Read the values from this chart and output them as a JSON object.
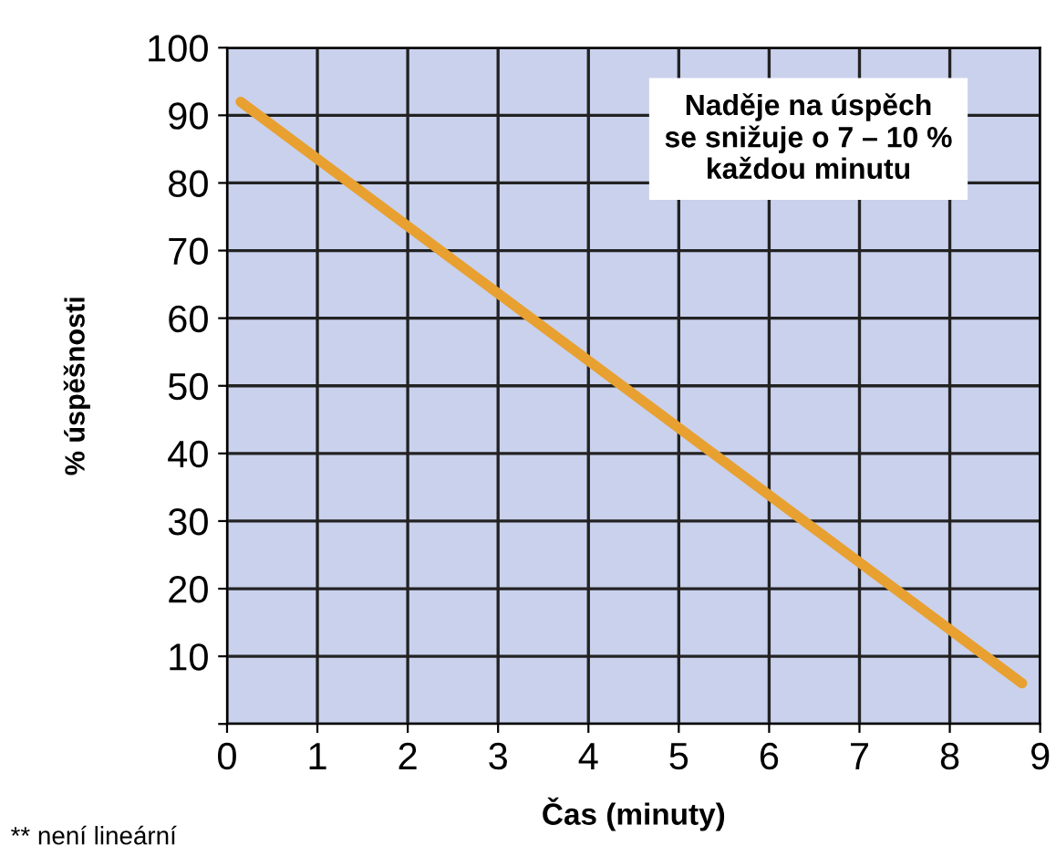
{
  "chart_data": {
    "type": "line",
    "xlabel": "Čas (minuty)",
    "ylabel": "% úspěšnosti",
    "annotations": [
      "Naděje na úspěch\nse snižuje o 7 – 10 %\nkaždou minutu",
      "** není lineární"
    ],
    "series": [
      {
        "color": "#e8a030",
        "x": [
          0.15,
          8.8
        ],
        "values": [
          92,
          6
        ]
      }
    ],
    "xlim": [
      0,
      9
    ],
    "xticks": [
      0,
      1,
      2,
      3,
      4,
      5,
      6,
      7,
      8,
      9
    ],
    "ylim": [
      0,
      100
    ],
    "yticks": [
      {
        "value": 0,
        "label": null
      },
      10,
      20,
      30,
      40,
      50,
      60,
      70,
      80,
      90,
      100
    ],
    "grid": true,
    "marker": "none",
    "line_style": "solid"
  }
}
